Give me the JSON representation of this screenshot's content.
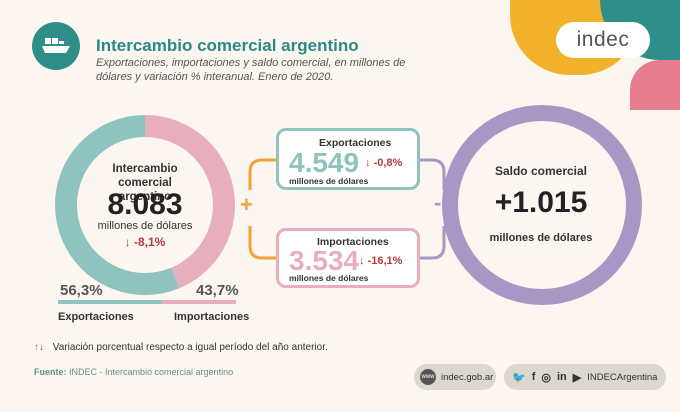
{
  "header": {
    "title": "Intercambio comercial argentino",
    "subtitle": "Exportaciones, importaciones y saldo comercial, en millones de dólares y variación % interanual. Enero de 2020.",
    "logo": "indec"
  },
  "donut": {
    "title": "Intercambio comercial argentino",
    "value": "8.083",
    "unit": "millones de dólares",
    "variation": "-8,1%",
    "exp_pct": "56,3%",
    "imp_pct": "43,7%",
    "exp_label": "Exportaciones",
    "imp_label": "Importaciones"
  },
  "exports": {
    "title": "Exportaciones",
    "value": "4.549",
    "unit": "millones de dólares",
    "variation": "-0,8%"
  },
  "imports": {
    "title": "Importaciones",
    "value": "3.534",
    "unit": "millones de dólares",
    "variation": "-16,1%"
  },
  "operators": {
    "plus": "+",
    "minus": "-"
  },
  "saldo": {
    "title": "Saldo comercial",
    "value": "+1.015",
    "unit": "millones de dólares"
  },
  "legend": {
    "text": "Variación porcentual respecto a igual período del año anterior."
  },
  "footer": {
    "source_label": "Fuente:",
    "source_text": "INDEC - Intercambio comercial argentino",
    "website": "indec.gob.ar",
    "social_handle": "INDECArgentina"
  },
  "icons": {
    "header": "ship-icon",
    "down": "arrow-down-icon",
    "website": "www-icon"
  },
  "colors": {
    "teal": "#8fc4be",
    "pink": "#e9aebe",
    "purple": "#a897c4",
    "orange": "#f2a23a",
    "red": "#b53a3a",
    "title": "#2a8a84"
  },
  "chart_data": {
    "type": "pie",
    "title": "Intercambio comercial argentino",
    "total": 8083,
    "slices": [
      {
        "name": "Exportaciones",
        "value": 4549,
        "percent": 56.3,
        "color": "#8fc4be"
      },
      {
        "name": "Importaciones",
        "value": 3534,
        "percent": 43.7,
        "color": "#e9aebe"
      }
    ],
    "balance": 1015
  }
}
